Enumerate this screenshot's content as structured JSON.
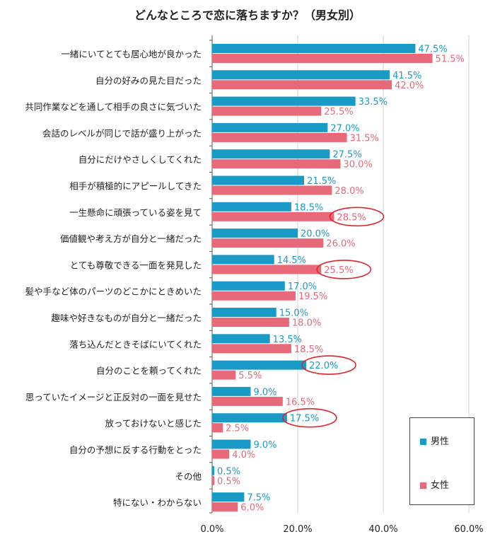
{
  "chart_data": {
    "type": "bar",
    "orientation": "horizontal",
    "title": "どんなところで恋に落ちますか？（男女別）",
    "categories": [
      "一緒にいてとても居心地が良かった",
      "自分の好みの見た目だった",
      "共同作業などを通して相手の良さに気づいた",
      "会話のレベルが同じで話が盛り上がった",
      "自分にだけやさしくしてくれた",
      "相手が積極的にアピールしてきた",
      "一生懸命に頑張っている姿を見て",
      "価値観や考え方が自分と一緒だった",
      "とても尊敬できる一面を発見した",
      "髪や手など体のパーツのどこかにときめいた",
      "趣味や好きなものが自分と一緒だった",
      "落ち込んだときそばにいてくれた",
      "自分のことを頼ってくれた",
      "思っていたイメージと正反対の一面を見せた",
      "放っておけないと感じた",
      "自分の予想に反する行動をとった",
      "その他",
      "特にない・わからない"
    ],
    "series": [
      {
        "name": "男性",
        "color": "#1a9bc7",
        "values": [
          47.5,
          41.5,
          33.5,
          27.0,
          27.5,
          21.5,
          18.5,
          20.0,
          14.5,
          17.0,
          15.0,
          13.5,
          22.0,
          9.0,
          17.5,
          9.0,
          0.5,
          7.5
        ],
        "labels": [
          "47.5%",
          "41.5%",
          "33.5%",
          "27.0%",
          "27.5%",
          "21.5%",
          "18.5%",
          "20.0%",
          "14.5%",
          "17.0%",
          "15.0%",
          "13.5%",
          "22.0%",
          "9.0%",
          "17.5%",
          "9.0%",
          "0.5%",
          "7.5%"
        ]
      },
      {
        "name": "女性",
        "color": "#e8697a",
        "values": [
          51.5,
          42.0,
          25.5,
          31.5,
          30.0,
          28.0,
          28.5,
          26.0,
          25.5,
          19.5,
          18.0,
          18.5,
          5.5,
          16.5,
          2.5,
          4.0,
          0.5,
          6.0
        ],
        "labels": [
          "51.5%",
          "42.0%",
          "25.5%",
          "31.5%",
          "30.0%",
          "28.0%",
          "28.5%",
          "26.0%",
          "25.5%",
          "19.5%",
          "18.0%",
          "18.5%",
          "5.5%",
          "16.5%",
          "2.5%",
          "4.0%",
          "0.5%",
          "6.0%"
        ]
      }
    ],
    "xlim": [
      0,
      60
    ],
    "xticks": [
      0,
      20,
      40,
      60
    ],
    "xtick_labels": [
      "0.0%",
      "20.0%",
      "40.0%",
      "60.0%"
    ],
    "grid": true,
    "legend_position": "bottom-right",
    "highlights": [
      {
        "category_index": 6,
        "series_index": 1
      },
      {
        "category_index": 8,
        "series_index": 1
      },
      {
        "category_index": 12,
        "series_index": 0
      },
      {
        "category_index": 14,
        "series_index": 0
      }
    ],
    "highlight_color": "#e0242b"
  }
}
